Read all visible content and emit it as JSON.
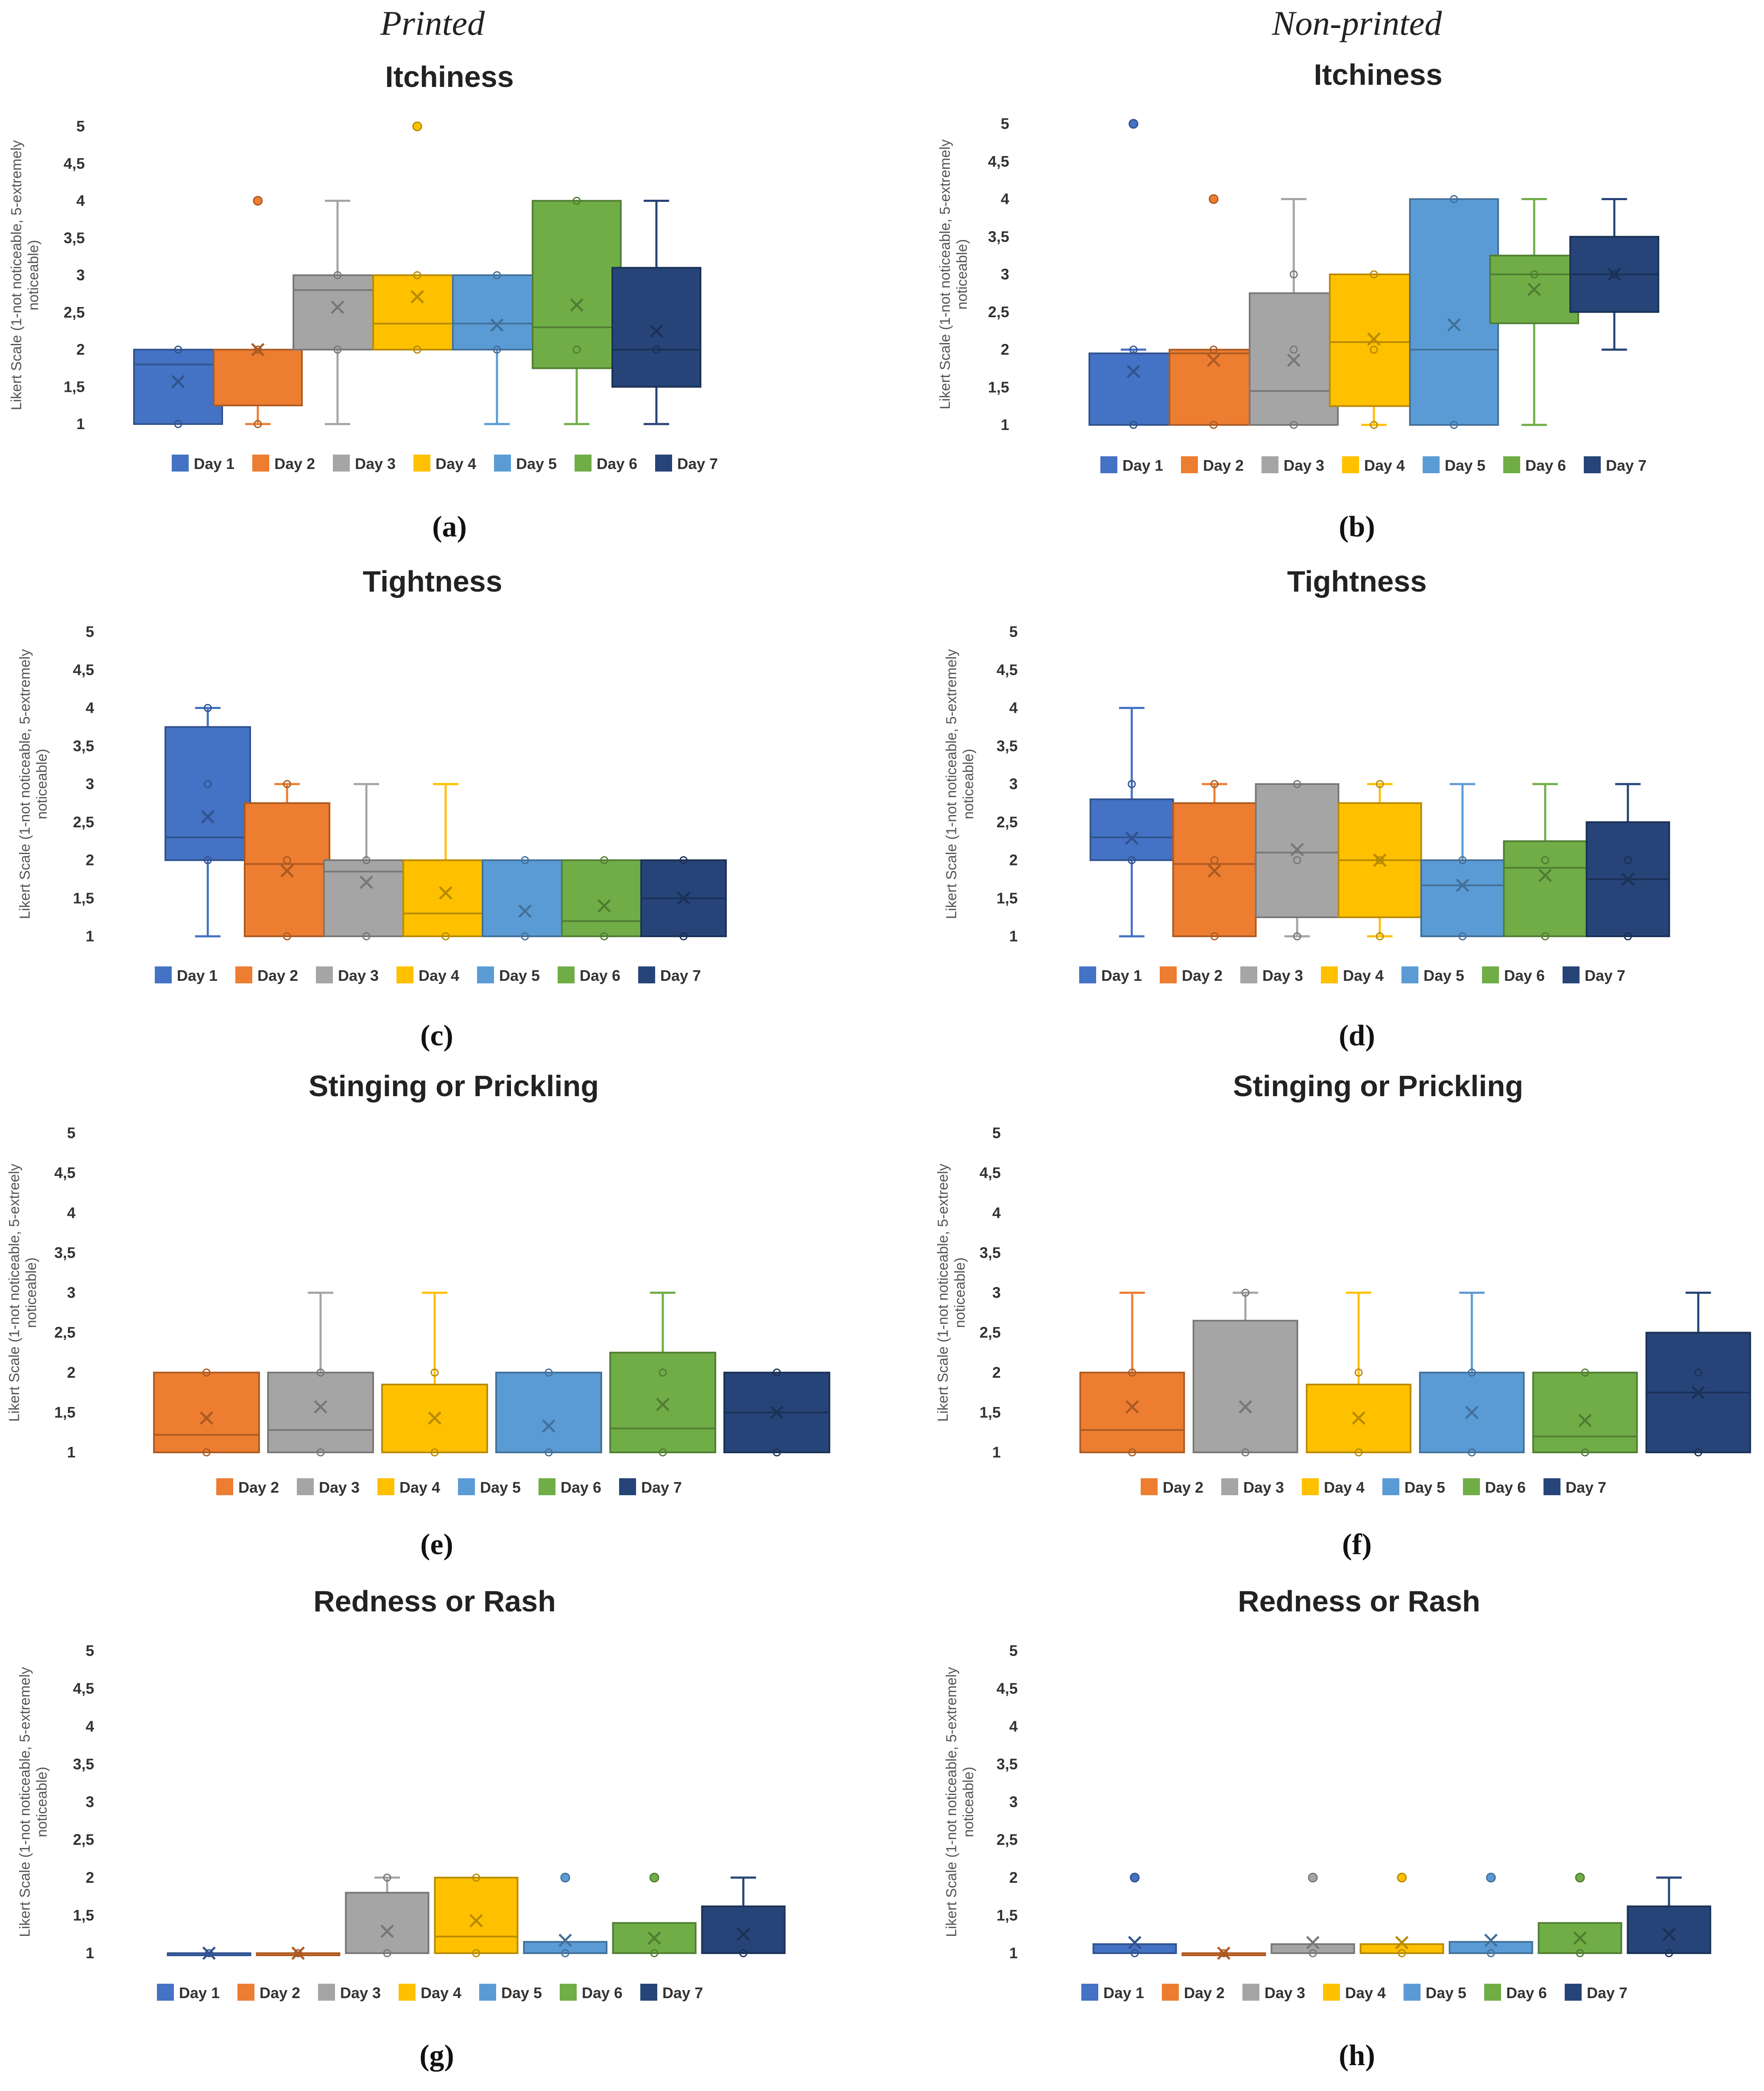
{
  "headers": {
    "left": "Printed",
    "right": "Non-printed"
  },
  "colors": {
    "Day 1": "#4472C4",
    "Day 2": "#ED7D31",
    "Day 3": "#A5A5A5",
    "Day 4": "#FFC000",
    "Day 5": "#5B9BD5",
    "Day 6": "#70AD47",
    "Day 7": "#264478"
  },
  "chart_data": [
    {
      "panel": "(a)",
      "type": "box",
      "title": "Itchiness",
      "ylabel": "Likert Scale (1-not noticeable, 5-extremely noticeable)",
      "yticks": [
        "1",
        "1,5",
        "2",
        "2,5",
        "3",
        "3,5",
        "4",
        "4,5",
        "5"
      ],
      "ylim": [
        1,
        5
      ],
      "series": [
        {
          "name": "Day 1",
          "min": 1,
          "q1": 1,
          "median": 1.8,
          "q3": 2,
          "max": 2,
          "mean": 1.57,
          "points": [
            1,
            2
          ],
          "outliers": []
        },
        {
          "name": "Day 2",
          "min": 1,
          "q1": 1.25,
          "median": 2,
          "q3": 2,
          "max": 2,
          "mean": 2.0,
          "points": [
            1,
            2
          ],
          "outliers": [
            4
          ]
        },
        {
          "name": "Day 3",
          "min": 1,
          "q1": 2,
          "median": 2.8,
          "q3": 3,
          "max": 4,
          "mean": 2.57,
          "points": [
            2,
            3
          ],
          "outliers": []
        },
        {
          "name": "Day 4",
          "min": 2,
          "q1": 2,
          "median": 2.35,
          "q3": 3,
          "max": 3,
          "mean": 2.71,
          "points": [
            2,
            3
          ],
          "outliers": [
            5
          ]
        },
        {
          "name": "Day 5",
          "min": 1,
          "q1": 2,
          "median": 2.35,
          "q3": 3,
          "max": 3,
          "mean": 2.33,
          "points": [
            2,
            3
          ],
          "outliers": []
        },
        {
          "name": "Day 6",
          "min": 1,
          "q1": 1.75,
          "median": 2.3,
          "q3": 4,
          "max": 4,
          "mean": 2.6,
          "points": [
            2,
            4
          ],
          "outliers": []
        },
        {
          "name": "Day 7",
          "min": 1,
          "q1": 1.5,
          "median": 2,
          "q3": 3.1,
          "max": 4,
          "mean": 2.25,
          "points": [
            2
          ],
          "outliers": []
        }
      ]
    },
    {
      "panel": "(b)",
      "type": "box",
      "title": "Itchiness",
      "ylabel": "Likert Scale (1-not noticeable, 5-extremely noticeable)",
      "yticks": [
        "1",
        "1,5",
        "2",
        "2,5",
        "3",
        "3,5",
        "4",
        "4,5",
        "5"
      ],
      "ylim": [
        1,
        5
      ],
      "series": [
        {
          "name": "Day 1",
          "min": 1,
          "q1": 1,
          "median": 1.95,
          "q3": 1.95,
          "max": 2,
          "mean": 1.71,
          "points": [
            1,
            2
          ],
          "outliers": [
            5
          ]
        },
        {
          "name": "Day 2",
          "min": 1,
          "q1": 1,
          "median": 1.95,
          "q3": 2,
          "max": 2,
          "mean": 1.86,
          "points": [
            1,
            2
          ],
          "outliers": [
            4
          ]
        },
        {
          "name": "Day 3",
          "min": 1,
          "q1": 1,
          "median": 1.45,
          "q3": 2.75,
          "max": 4,
          "mean": 1.86,
          "points": [
            1,
            2,
            3
          ],
          "outliers": []
        },
        {
          "name": "Day 4",
          "min": 1,
          "q1": 1.25,
          "median": 2.1,
          "q3": 3,
          "max": 3,
          "mean": 2.14,
          "points": [
            1,
            2,
            3
          ],
          "outliers": []
        },
        {
          "name": "Day 5",
          "min": 1,
          "q1": 1,
          "median": 2,
          "q3": 4,
          "max": 4,
          "mean": 2.33,
          "points": [
            1,
            4
          ],
          "outliers": []
        },
        {
          "name": "Day 6",
          "min": 1,
          "q1": 2.35,
          "median": 3,
          "q3": 3.25,
          "max": 4,
          "mean": 2.8,
          "points": [
            3
          ],
          "outliers": []
        },
        {
          "name": "Day 7",
          "min": 2,
          "q1": 2.5,
          "median": 3,
          "q3": 3.5,
          "max": 4,
          "mean": 3.0,
          "points": [
            3
          ],
          "outliers": []
        }
      ]
    },
    {
      "panel": "(c)",
      "type": "box",
      "title": "Tightness",
      "ylabel": "Likert Scale (1-not noticeable, 5-extremely noticeable)",
      "yticks": [
        "1",
        "1,5",
        "2",
        "2,5",
        "3",
        "3,5",
        "4",
        "4,5",
        "5"
      ],
      "ylim": [
        1,
        5
      ],
      "series": [
        {
          "name": "Day 1",
          "min": 1,
          "q1": 2,
          "median": 2.3,
          "q3": 3.75,
          "max": 4,
          "mean": 2.57,
          "points": [
            2,
            3,
            4
          ],
          "outliers": []
        },
        {
          "name": "Day 2",
          "min": 1,
          "q1": 1,
          "median": 1.95,
          "q3": 2.75,
          "max": 3,
          "mean": 1.86,
          "points": [
            1,
            2,
            3
          ],
          "outliers": []
        },
        {
          "name": "Day 3",
          "min": 1,
          "q1": 1,
          "median": 1.85,
          "q3": 2,
          "max": 3,
          "mean": 1.71,
          "points": [
            1,
            2
          ],
          "outliers": []
        },
        {
          "name": "Day 4",
          "min": 1,
          "q1": 1,
          "median": 1.3,
          "q3": 2,
          "max": 3,
          "mean": 1.57,
          "points": [
            1
          ],
          "outliers": []
        },
        {
          "name": "Day 5",
          "min": 1,
          "q1": 1,
          "median": 1,
          "q3": 2,
          "max": 2,
          "mean": 1.33,
          "points": [
            1,
            2
          ],
          "outliers": []
        },
        {
          "name": "Day 6",
          "min": 1,
          "q1": 1,
          "median": 1.2,
          "q3": 2,
          "max": 2,
          "mean": 1.4,
          "points": [
            1,
            2
          ],
          "outliers": []
        },
        {
          "name": "Day 7",
          "min": 1,
          "q1": 1,
          "median": 1.5,
          "q3": 2,
          "max": 2,
          "mean": 1.5,
          "points": [
            1,
            2
          ],
          "outliers": []
        }
      ]
    },
    {
      "panel": "(d)",
      "type": "box",
      "title": "Tightness",
      "ylabel": "Likert Scale (1-not noticeable, 5-extremely noticeable)",
      "yticks": [
        "1",
        "1,5",
        "2",
        "2,5",
        "3",
        "3,5",
        "4",
        "4,5",
        "5"
      ],
      "ylim": [
        1,
        5
      ],
      "series": [
        {
          "name": "Day 1",
          "min": 1,
          "q1": 2,
          "median": 2.3,
          "q3": 2.8,
          "max": 4,
          "mean": 2.29,
          "points": [
            2,
            3
          ],
          "outliers": []
        },
        {
          "name": "Day 2",
          "min": 1,
          "q1": 1,
          "median": 1.95,
          "q3": 2.75,
          "max": 3,
          "mean": 1.86,
          "points": [
            1,
            2,
            3
          ],
          "outliers": []
        },
        {
          "name": "Day 3",
          "min": 1,
          "q1": 1.25,
          "median": 2.1,
          "q3": 3,
          "max": 3,
          "mean": 2.14,
          "points": [
            1,
            2,
            3
          ],
          "outliers": []
        },
        {
          "name": "Day 4",
          "min": 1,
          "q1": 1.25,
          "median": 2,
          "q3": 2.75,
          "max": 3,
          "mean": 2.0,
          "points": [
            1,
            2,
            3
          ],
          "outliers": []
        },
        {
          "name": "Day 5",
          "min": 1,
          "q1": 1,
          "median": 1.67,
          "q3": 2,
          "max": 3,
          "mean": 1.67,
          "points": [
            1,
            2
          ],
          "outliers": []
        },
        {
          "name": "Day 6",
          "min": 1,
          "q1": 1,
          "median": 1.9,
          "q3": 2.25,
          "max": 3,
          "mean": 1.8,
          "points": [
            1,
            2
          ],
          "outliers": []
        },
        {
          "name": "Day 7",
          "min": 1,
          "q1": 1,
          "median": 1.75,
          "q3": 2.5,
          "max": 3,
          "mean": 1.75,
          "points": [
            1,
            2
          ],
          "outliers": []
        }
      ]
    },
    {
      "panel": "(e)",
      "type": "box",
      "title": "Stinging or Prickling",
      "ylabel": "Likert Scale (1-not noticeable, 5-extreely noticeable)",
      "yticks": [
        "1",
        "1,5",
        "2",
        "2,5",
        "3",
        "3,5",
        "4",
        "4,5",
        "5"
      ],
      "ylim": [
        1,
        5
      ],
      "series": [
        {
          "name": "Day 2",
          "min": 1,
          "q1": 1,
          "median": 1.22,
          "q3": 2,
          "max": 2,
          "mean": 1.43,
          "points": [
            1,
            2
          ],
          "outliers": []
        },
        {
          "name": "Day 3",
          "min": 1,
          "q1": 1,
          "median": 1.28,
          "q3": 2,
          "max": 3,
          "mean": 1.57,
          "points": [
            1,
            2
          ],
          "outliers": []
        },
        {
          "name": "Day 4",
          "min": 1,
          "q1": 1,
          "median": 1,
          "q3": 1.85,
          "max": 3,
          "mean": 1.43,
          "points": [
            1,
            2
          ],
          "outliers": []
        },
        {
          "name": "Day 5",
          "min": 1,
          "q1": 1,
          "median": 1,
          "q3": 2,
          "max": 2,
          "mean": 1.33,
          "points": [
            1,
            2
          ],
          "outliers": []
        },
        {
          "name": "Day 6",
          "min": 1,
          "q1": 1,
          "median": 1.3,
          "q3": 2.25,
          "max": 3,
          "mean": 1.6,
          "points": [
            1,
            2
          ],
          "outliers": []
        },
        {
          "name": "Day 7",
          "min": 1,
          "q1": 1,
          "median": 1.5,
          "q3": 2,
          "max": 2,
          "mean": 1.5,
          "points": [
            1,
            2
          ],
          "outliers": []
        }
      ]
    },
    {
      "panel": "(f)",
      "type": "box",
      "title": "Stinging or Prickling",
      "ylabel": "Likert Scale (1-not noticeable, 5-extreely noticeable)",
      "yticks": [
        "1",
        "1,5",
        "2",
        "2,5",
        "3",
        "3,5",
        "4",
        "4,5",
        "5"
      ],
      "ylim": [
        1,
        5
      ],
      "series": [
        {
          "name": "Day 2",
          "min": 1,
          "q1": 1,
          "median": 1.28,
          "q3": 2,
          "max": 3,
          "mean": 1.57,
          "points": [
            1,
            2
          ],
          "outliers": []
        },
        {
          "name": "Day 3",
          "min": 1,
          "q1": 1,
          "median": 1,
          "q3": 2.65,
          "max": 3,
          "mean": 1.57,
          "points": [
            1,
            3
          ],
          "outliers": []
        },
        {
          "name": "Day 4",
          "min": 1,
          "q1": 1,
          "median": 1,
          "q3": 1.85,
          "max": 3,
          "mean": 1.43,
          "points": [
            1,
            2
          ],
          "outliers": []
        },
        {
          "name": "Day 5",
          "min": 1,
          "q1": 1,
          "median": 1,
          "q3": 2,
          "max": 3,
          "mean": 1.5,
          "points": [
            1,
            2
          ],
          "outliers": []
        },
        {
          "name": "Day 6",
          "min": 1,
          "q1": 1,
          "median": 1.2,
          "q3": 2,
          "max": 2,
          "mean": 1.4,
          "points": [
            1,
            2
          ],
          "outliers": []
        },
        {
          "name": "Day 7",
          "min": 1,
          "q1": 1,
          "median": 1.75,
          "q3": 2.5,
          "max": 3,
          "mean": 1.75,
          "points": [
            1,
            2
          ],
          "outliers": []
        }
      ]
    },
    {
      "panel": "(g)",
      "type": "box",
      "title": "Redness or Rash",
      "ylabel": "Likert Scale (1-not noticeable, 5-extremely noticeable)",
      "yticks": [
        "1",
        "1,5",
        "2",
        "2,5",
        "3",
        "3,5",
        "4",
        "4,5",
        "5"
      ],
      "ylim": [
        1,
        5
      ],
      "series": [
        {
          "name": "Day 1",
          "min": 1,
          "q1": 1,
          "median": 1,
          "q3": 1,
          "max": 1,
          "mean": 1.0,
          "points": [
            1
          ],
          "outliers": []
        },
        {
          "name": "Day 2",
          "min": 1,
          "q1": 1,
          "median": 1,
          "q3": 1,
          "max": 1,
          "mean": 1.0,
          "points": [
            1
          ],
          "outliers": []
        },
        {
          "name": "Day 3",
          "min": 1,
          "q1": 1,
          "median": 1,
          "q3": 1.8,
          "max": 2,
          "mean": 1.29,
          "points": [
            1,
            2
          ],
          "outliers": []
        },
        {
          "name": "Day 4",
          "min": 1,
          "q1": 1,
          "median": 1.22,
          "q3": 2,
          "max": 2,
          "mean": 1.43,
          "points": [
            1,
            2
          ],
          "outliers": []
        },
        {
          "name": "Day 5",
          "min": 1,
          "q1": 1,
          "median": 1,
          "q3": 1.15,
          "max": 1.15,
          "mean": 1.17,
          "points": [
            1
          ],
          "outliers": [
            2
          ]
        },
        {
          "name": "Day 6",
          "min": 1,
          "q1": 1,
          "median": 1,
          "q3": 1.4,
          "max": 1.4,
          "mean": 1.2,
          "points": [
            1
          ],
          "outliers": [
            2
          ]
        },
        {
          "name": "Day 7",
          "min": 1,
          "q1": 1,
          "median": 1,
          "q3": 1.62,
          "max": 2,
          "mean": 1.25,
          "points": [
            1
          ],
          "outliers": []
        }
      ]
    },
    {
      "panel": "(h)",
      "type": "box",
      "title": "Redness or Rash",
      "ylabel": "Likert Scale (1-not noticeable, 5-extremely noticeable)",
      "yticks": [
        "1",
        "1,5",
        "2",
        "2,5",
        "3",
        "3,5",
        "4",
        "4,5",
        "5"
      ],
      "ylim": [
        1,
        5
      ],
      "series": [
        {
          "name": "Day 1",
          "min": 1,
          "q1": 1,
          "median": 1,
          "q3": 1.12,
          "max": 1.12,
          "mean": 1.14,
          "points": [
            1
          ],
          "outliers": [
            2
          ]
        },
        {
          "name": "Day 2",
          "min": 1,
          "q1": 1,
          "median": 1,
          "q3": 1,
          "max": 1,
          "mean": 1.0,
          "points": [
            1
          ],
          "outliers": []
        },
        {
          "name": "Day 3",
          "min": 1,
          "q1": 1,
          "median": 1,
          "q3": 1.12,
          "max": 1.12,
          "mean": 1.14,
          "points": [
            1
          ],
          "outliers": [
            2
          ]
        },
        {
          "name": "Day 4",
          "min": 1,
          "q1": 1,
          "median": 1,
          "q3": 1.12,
          "max": 1.12,
          "mean": 1.14,
          "points": [
            1
          ],
          "outliers": [
            2
          ]
        },
        {
          "name": "Day 5",
          "min": 1,
          "q1": 1,
          "median": 1,
          "q3": 1.15,
          "max": 1.15,
          "mean": 1.17,
          "points": [
            1
          ],
          "outliers": [
            2
          ]
        },
        {
          "name": "Day 6",
          "min": 1,
          "q1": 1,
          "median": 1,
          "q3": 1.4,
          "max": 1.4,
          "mean": 1.2,
          "points": [
            1
          ],
          "outliers": [
            2
          ]
        },
        {
          "name": "Day 7",
          "min": 1,
          "q1": 1,
          "median": 1,
          "q3": 1.62,
          "max": 2,
          "mean": 1.25,
          "points": [
            1
          ],
          "outliers": []
        }
      ]
    }
  ]
}
